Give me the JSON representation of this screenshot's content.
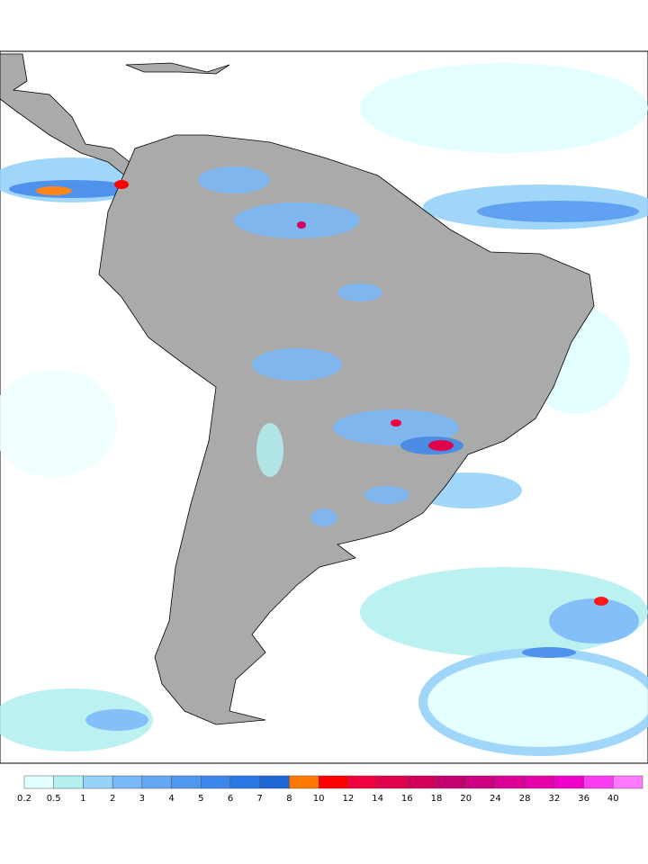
{
  "colorbar": {
    "labels": [
      0.2,
      0.5,
      1,
      2,
      3,
      4,
      5,
      6,
      7,
      8,
      10,
      12,
      14,
      16,
      18,
      20,
      24,
      28,
      32,
      36,
      40
    ],
    "colors": [
      "#e1ffff",
      "#b4f0f0",
      "#96d2fa",
      "#78b9fa",
      "#64a8f3",
      "#4f98f0",
      "#3c87ec",
      "#2a77e6",
      "#1c66d6",
      "#ff7800",
      "#ff0000",
      "#f0003c",
      "#e1004b",
      "#d2005a",
      "#c3006e",
      "#cd0082",
      "#dc0096",
      "#e600aa",
      "#f000c8",
      "#fa3cf0",
      "#ff78ff"
    ]
  }
}
